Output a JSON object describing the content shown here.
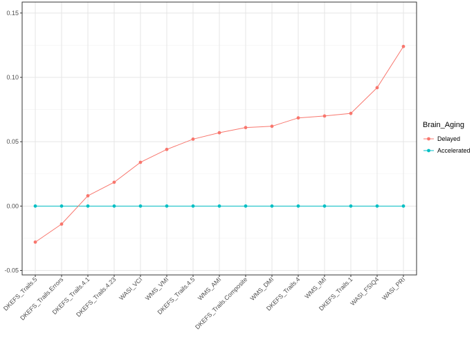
{
  "chart_data": {
    "type": "line",
    "categories": [
      "DKEFS_Trails.5",
      "DKEFS_Trails.Errors",
      "DKEFS_Trails.4.1",
      "DKEFS_Trails.4.23",
      "WASI_VCI",
      "WMS_VMI",
      "DKEFS_Trails.4.5",
      "WMS_AMI",
      "DKEFS_Trails.Composite",
      "WMS_DMI",
      "DKEFS_Trails.4",
      "WMS_IMI",
      "DKEFS_Trails.1",
      "WASI_FSIQ4",
      "WASI_PRI"
    ],
    "series": [
      {
        "name": "Delayed",
        "color": "#F8766D",
        "values": [
          -0.028,
          -0.014,
          0.008,
          0.0185,
          0.034,
          0.044,
          0.052,
          0.057,
          0.061,
          0.062,
          0.0685,
          0.07,
          0.072,
          0.092,
          0.124
        ]
      },
      {
        "name": "Accelerated",
        "color": "#00BFC4",
        "values": [
          0,
          0,
          0,
          0,
          0,
          0,
          0,
          0,
          0,
          0,
          0,
          0,
          0,
          0,
          0
        ]
      }
    ],
    "yticks": [
      -0.05,
      0.0,
      0.05,
      0.1,
      0.15
    ],
    "ytick_labels": [
      "-0.05",
      "0.00",
      "0.05",
      "0.10",
      "0.15"
    ],
    "ylim": [
      -0.0535,
      0.1585
    ],
    "title": "",
    "xlabel": "",
    "ylabel": "",
    "grid": true,
    "legend": {
      "title": "Brain_Aging",
      "position": "right",
      "items": [
        "Delayed",
        "Accelerated"
      ]
    }
  }
}
